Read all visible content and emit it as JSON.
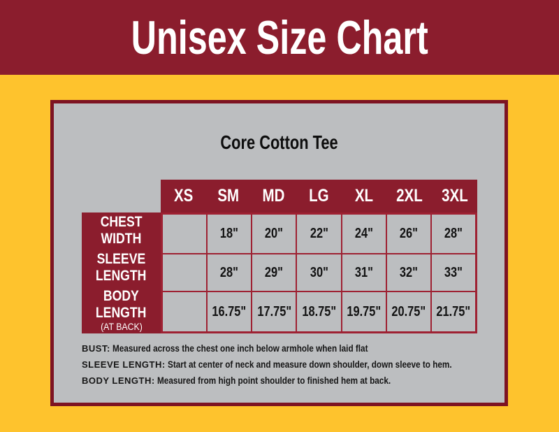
{
  "header": {
    "title": "Unisex Size Chart"
  },
  "panel": {
    "subtitle": "Core Cotton Tee",
    "table": {
      "sizes": [
        "XS",
        "SM",
        "MD",
        "LG",
        "XL",
        "2XL",
        "3XL"
      ],
      "rows": [
        {
          "label_line1": "CHEST",
          "label_line2": "WIDTH",
          "sublabel": "",
          "values": [
            "",
            "18\"",
            "20\"",
            "22\"",
            "24\"",
            "26\"",
            "28\""
          ]
        },
        {
          "label_line1": "SLEEVE",
          "label_line2": "LENGTH",
          "sublabel": "",
          "values": [
            "",
            "28\"",
            "29\"",
            "30\"",
            "31\"",
            "32\"",
            "33\""
          ]
        },
        {
          "label_line1": "BODY",
          "label_line2": "LENGTH",
          "sublabel": "(AT BACK)",
          "values": [
            "",
            "16.75\"",
            "17.75\"",
            "18.75\"",
            "19.75\"",
            "20.75\"",
            "21.75\""
          ]
        }
      ]
    },
    "notes": [
      {
        "label": "BUST:",
        "text": "Measured across the chest one inch below armhole when laid flat"
      },
      {
        "label": "SLEEVE LENGTH:",
        "text": "Start at center of neck and measure down shoulder, down sleeve to hem."
      },
      {
        "label": "BODY LENGTH:",
        "text": "Measured from high point shoulder to finished hem at back."
      }
    ]
  },
  "colors": {
    "maroon": "#8B1D2D",
    "maroon-dark": "#7D1322",
    "gridline": "#9E2132",
    "yellow": "#FEC32D",
    "panel-gray": "#BCBEC0",
    "text-dark": "#131313",
    "text-light": "#FFFFFF"
  }
}
